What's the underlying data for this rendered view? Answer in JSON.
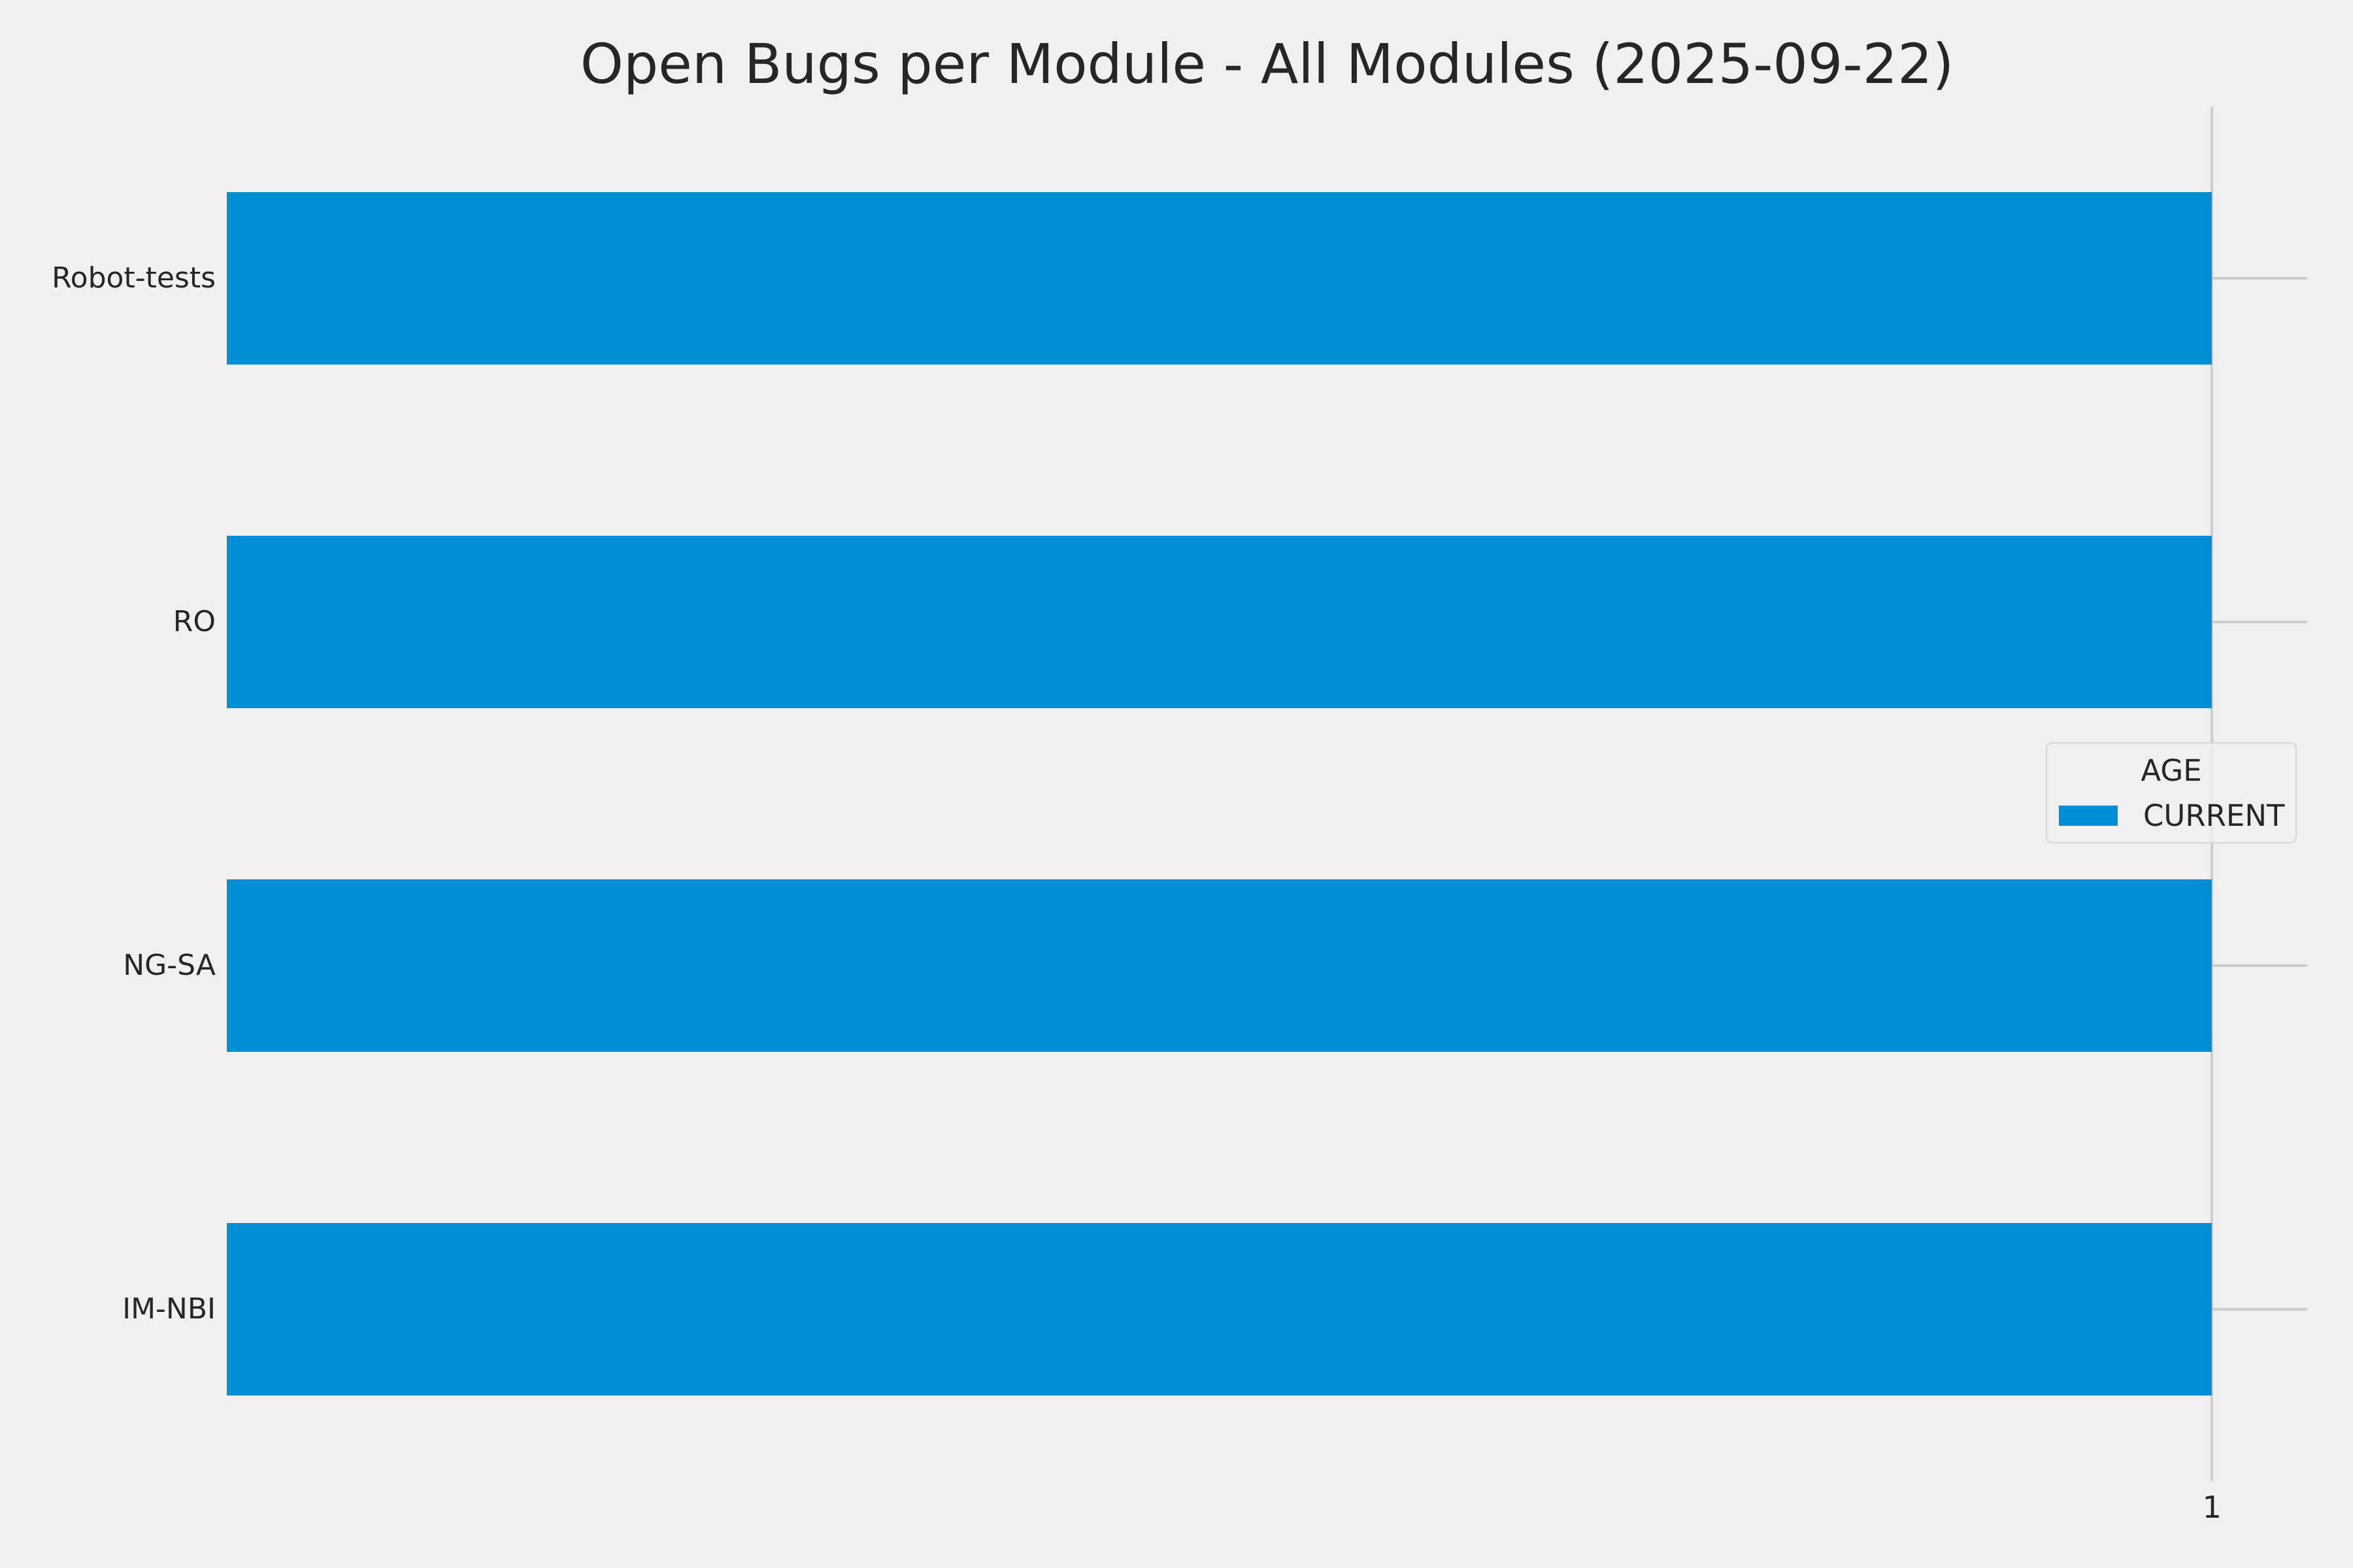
{
  "chart_data": {
    "type": "bar",
    "orientation": "horizontal",
    "title": "Open Bugs per Module - All Modules (2025-09-22)",
    "categories": [
      "Robot-tests",
      "RO",
      "NG-SA",
      "IM-NBI"
    ],
    "series": [
      {
        "name": "CURRENT",
        "values": [
          1,
          1,
          1,
          1
        ]
      }
    ],
    "xlim": [
      0,
      1.048
    ],
    "xticks": [
      {
        "value": 1,
        "label": "1"
      }
    ],
    "grid": true,
    "legend": {
      "title": "AGE",
      "position": "center-right",
      "items": [
        {
          "label": "CURRENT",
          "color": "#008fd5"
        }
      ]
    },
    "colors": {
      "bar": "#008fd5",
      "background": "#f0f0f0",
      "gridline": "#cdcdcd",
      "text": "#262626",
      "legend_border": "#d7d7d7"
    }
  }
}
